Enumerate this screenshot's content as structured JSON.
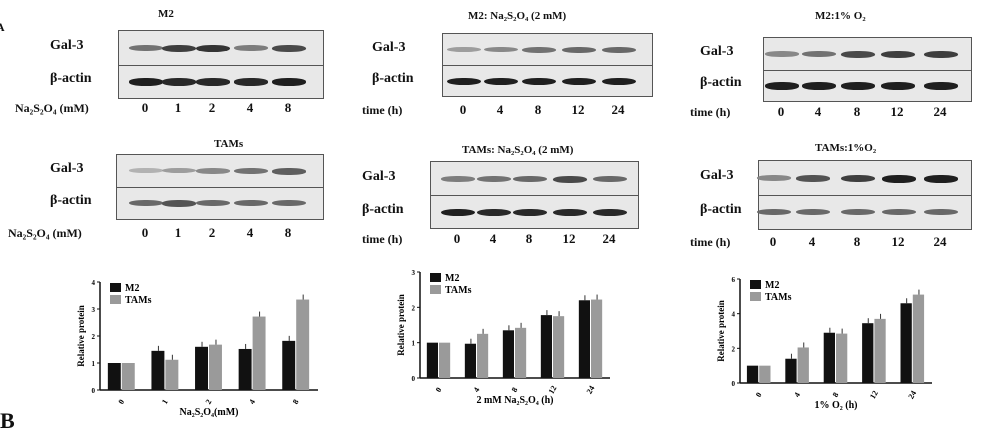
{
  "panel_letters": {
    "a": "A",
    "b": "B"
  },
  "blots": [
    {
      "title": "M2",
      "rows": [
        "Gal-3",
        "β-actin"
      ],
      "lane_label": "Na₂S₂O₄ (mM)",
      "lanes": [
        "0",
        "1",
        "2",
        "4",
        "8"
      ],
      "gal3_intensity": [
        0.55,
        0.8,
        0.85,
        0.5,
        0.75
      ],
      "actin_intensity": [
        0.95,
        0.9,
        0.9,
        0.9,
        0.95
      ]
    },
    {
      "title": "TAMs",
      "rows": [
        "Gal-3",
        "β-actin"
      ],
      "lane_label": "Na₂S₂O₄ (mM)",
      "lanes": [
        "0",
        "1",
        "2",
        "4",
        "8"
      ],
      "gal3_intensity": [
        0.25,
        0.35,
        0.45,
        0.55,
        0.65
      ],
      "actin_intensity": [
        0.6,
        0.7,
        0.6,
        0.6,
        0.6
      ]
    },
    {
      "title": "M2: Na₂S₂O₄ (2 mM)",
      "rows": [
        "Gal-3",
        "β-actin"
      ],
      "lane_label": "time (h)",
      "lanes": [
        "0",
        "4",
        "8",
        "12",
        "24"
      ],
      "gal3_intensity": [
        0.35,
        0.45,
        0.55,
        0.6,
        0.6
      ],
      "actin_intensity": [
        0.95,
        0.95,
        0.95,
        0.95,
        0.95
      ]
    },
    {
      "title": "TAMs: Na₂S₂O₄ (2 mM)",
      "rows": [
        "Gal-3",
        "β-actin"
      ],
      "lane_label": "time (h)",
      "lanes": [
        "0",
        "4",
        "8",
        "12",
        "24"
      ],
      "gal3_intensity": [
        0.5,
        0.55,
        0.6,
        0.75,
        0.6
      ],
      "actin_intensity": [
        0.95,
        0.9,
        0.9,
        0.9,
        0.9
      ]
    },
    {
      "title": "M2:1% O₂",
      "rows": [
        "Gal-3",
        "β-actin"
      ],
      "lane_label": "time (h)",
      "lanes": [
        "0",
        "4",
        "8",
        "12",
        "24"
      ],
      "gal3_intensity": [
        0.45,
        0.55,
        0.75,
        0.8,
        0.8
      ],
      "actin_intensity": [
        0.95,
        0.95,
        0.95,
        0.95,
        0.95
      ]
    },
    {
      "title": "TAMs:1%O₂",
      "rows": [
        "Gal-3",
        "β-actin"
      ],
      "lane_label": "time (h)",
      "lanes": [
        "0",
        "4",
        "8",
        "12",
        "24"
      ],
      "gal3_intensity": [
        0.45,
        0.7,
        0.8,
        0.95,
        0.95
      ],
      "actin_intensity": [
        0.6,
        0.6,
        0.6,
        0.6,
        0.6
      ]
    }
  ],
  "colors": {
    "M2": "#111111",
    "TAMs": "#9a9a9a"
  },
  "chart_data": [
    {
      "type": "bar",
      "categories": [
        "0",
        "1",
        "2",
        "4",
        "8"
      ],
      "xlabel": "Na₂S₂O₄(mM)",
      "ylabel": "Relative protein",
      "ylim": [
        0,
        4
      ],
      "yticks": [
        "0",
        "1",
        "2",
        "3",
        "4"
      ],
      "legend": "top-left",
      "series": [
        {
          "name": "M2",
          "values": [
            1,
            1.45,
            1.6,
            1.52,
            1.82
          ]
        },
        {
          "name": "TAMs",
          "values": [
            1,
            1.12,
            1.68,
            2.72,
            3.35
          ]
        }
      ]
    },
    {
      "type": "bar",
      "categories": [
        "0",
        "4",
        "8",
        "12",
        "24"
      ],
      "xlabel": "2 mM Na₂S₂O₄ (h)",
      "ylabel": "Relative protein",
      "ylim": [
        0,
        3
      ],
      "yticks": [
        "0",
        "1",
        "2",
        "3"
      ],
      "legend": "top-left",
      "series": [
        {
          "name": "M2",
          "values": [
            1,
            0.97,
            1.35,
            1.78,
            2.2
          ]
        },
        {
          "name": "TAMs",
          "values": [
            1,
            1.25,
            1.42,
            1.75,
            2.22
          ]
        }
      ]
    },
    {
      "type": "bar",
      "categories": [
        "0",
        "4",
        "8",
        "12",
        "24"
      ],
      "xlabel": "1% O₂ (h)",
      "ylabel": "Relative protein",
      "ylim": [
        0,
        6
      ],
      "yticks": [
        "0",
        "2",
        "4",
        "6"
      ],
      "legend": "top-left",
      "series": [
        {
          "name": "M2",
          "values": [
            1,
            1.4,
            2.9,
            3.45,
            4.6
          ]
        },
        {
          "name": "TAMs",
          "values": [
            1,
            2.05,
            2.85,
            3.7,
            5.1
          ]
        }
      ]
    }
  ]
}
